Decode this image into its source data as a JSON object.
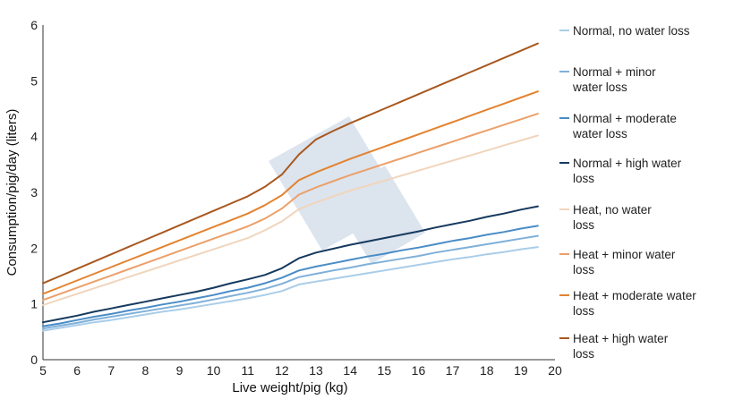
{
  "chart_data": {
    "type": "line",
    "xlabel": "Live weight/pig (kg)",
    "ylabel": "Consumption/pig/day (liters)",
    "xlim": [
      5,
      20
    ],
    "ylim": [
      0,
      6
    ],
    "x_ticks": [
      5,
      6,
      7,
      8,
      9,
      10,
      11,
      12,
      13,
      14,
      15,
      16,
      17,
      18,
      19,
      20
    ],
    "y_ticks": [
      0,
      1,
      2,
      3,
      4,
      5,
      6
    ],
    "grid": false,
    "legend_position": "right",
    "x": [
      5,
      5.5,
      6,
      6.5,
      7,
      7.5,
      8,
      8.5,
      9,
      9.5,
      10,
      10.5,
      11,
      11.5,
      12,
      12.5,
      13,
      13.5,
      14,
      14.5,
      15,
      15.5,
      16,
      16.5,
      17,
      17.5,
      18,
      18.5,
      19,
      19.5
    ],
    "series": [
      {
        "name": "Normal, no water loss",
        "color": "#a9cde9",
        "values": [
          0.52,
          0.57,
          0.62,
          0.67,
          0.71,
          0.76,
          0.81,
          0.86,
          0.9,
          0.95,
          1.0,
          1.05,
          1.1,
          1.16,
          1.23,
          1.35,
          1.4,
          1.45,
          1.5,
          1.55,
          1.6,
          1.65,
          1.7,
          1.75,
          1.8,
          1.84,
          1.89,
          1.93,
          1.98,
          2.02
        ]
      },
      {
        "name": "Normal + minor water loss",
        "color": "#7fb0d9",
        "values": [
          0.56,
          0.61,
          0.66,
          0.72,
          0.77,
          0.82,
          0.87,
          0.92,
          0.97,
          1.02,
          1.08,
          1.14,
          1.2,
          1.27,
          1.36,
          1.48,
          1.54,
          1.6,
          1.65,
          1.71,
          1.76,
          1.81,
          1.86,
          1.92,
          1.97,
          2.02,
          2.07,
          2.12,
          2.17,
          2.22
        ]
      },
      {
        "name": "Normal + moderate water loss",
        "color": "#4a8cc6",
        "values": [
          0.6,
          0.65,
          0.71,
          0.77,
          0.82,
          0.88,
          0.93,
          0.99,
          1.04,
          1.1,
          1.16,
          1.23,
          1.29,
          1.37,
          1.47,
          1.6,
          1.67,
          1.73,
          1.79,
          1.85,
          1.9,
          1.96,
          2.01,
          2.07,
          2.13,
          2.18,
          2.24,
          2.29,
          2.35,
          2.4
        ]
      },
      {
        "name": "Normal + high water loss",
        "color": "#163a5e",
        "values": [
          0.67,
          0.73,
          0.79,
          0.86,
          0.92,
          0.98,
          1.04,
          1.1,
          1.16,
          1.22,
          1.29,
          1.37,
          1.44,
          1.52,
          1.64,
          1.82,
          1.92,
          1.99,
          2.06,
          2.12,
          2.18,
          2.24,
          2.3,
          2.37,
          2.43,
          2.49,
          2.56,
          2.62,
          2.69,
          2.75
        ]
      },
      {
        "name": "Heat, no water loss",
        "color": "#f0d5bc",
        "values": [
          0.98,
          1.08,
          1.18,
          1.28,
          1.38,
          1.48,
          1.58,
          1.68,
          1.78,
          1.88,
          1.98,
          2.08,
          2.18,
          2.32,
          2.48,
          2.7,
          2.82,
          2.93,
          3.03,
          3.12,
          3.21,
          3.3,
          3.39,
          3.48,
          3.57,
          3.66,
          3.75,
          3.84,
          3.93,
          4.02
        ]
      },
      {
        "name": "Heat + minor water loss",
        "color": "#eba06a",
        "values": [
          1.07,
          1.18,
          1.29,
          1.4,
          1.51,
          1.62,
          1.73,
          1.84,
          1.95,
          2.06,
          2.17,
          2.28,
          2.39,
          2.53,
          2.71,
          2.96,
          3.09,
          3.2,
          3.31,
          3.41,
          3.51,
          3.61,
          3.71,
          3.81,
          3.91,
          4.01,
          4.11,
          4.21,
          4.31,
          4.41
        ]
      },
      {
        "name": "Heat + moderate water loss",
        "color": "#e3832f",
        "values": [
          1.18,
          1.3,
          1.42,
          1.54,
          1.66,
          1.78,
          1.9,
          2.02,
          2.14,
          2.26,
          2.38,
          2.5,
          2.62,
          2.77,
          2.95,
          3.22,
          3.36,
          3.48,
          3.6,
          3.71,
          3.82,
          3.93,
          4.04,
          4.15,
          4.26,
          4.37,
          4.48,
          4.59,
          4.7,
          4.81
        ]
      },
      {
        "name": "Heat + high water loss",
        "color": "#a8581f",
        "values": [
          1.37,
          1.5,
          1.63,
          1.76,
          1.89,
          2.02,
          2.15,
          2.28,
          2.41,
          2.54,
          2.67,
          2.8,
          2.93,
          3.1,
          3.32,
          3.68,
          3.95,
          4.1,
          4.24,
          4.37,
          4.5,
          4.63,
          4.76,
          4.89,
          5.02,
          5.15,
          5.28,
          5.41,
          5.54,
          5.67
        ]
      }
    ],
    "legend": [
      [
        "Normal, no water loss"
      ],
      [
        "Normal + minor",
        "water loss"
      ],
      [
        "Normal + moderate",
        "water loss"
      ],
      [
        "Normal + high water",
        "loss"
      ],
      [
        "Heat, no water",
        "loss"
      ],
      [
        "Heat + minor water",
        "loss"
      ],
      [
        "Heat + moderate water",
        "loss"
      ],
      [
        "Heat + high water",
        "loss"
      ]
    ]
  }
}
